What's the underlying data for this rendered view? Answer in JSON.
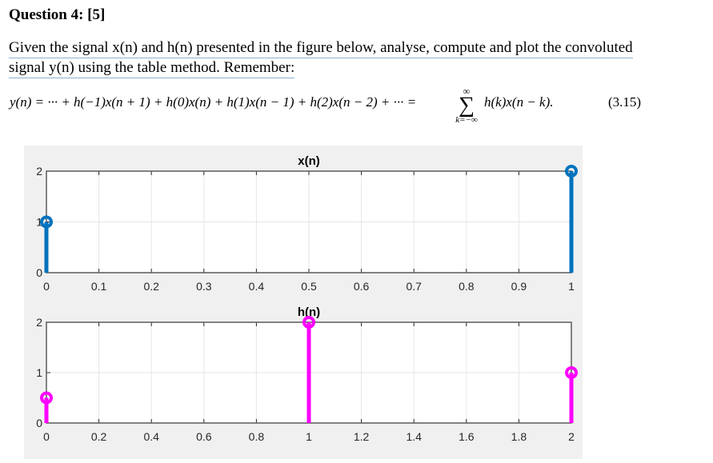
{
  "question": {
    "title": "Question 4: [5]",
    "line1": "Given the signal x(n) and h(n) presented in the figure below, analyse, compute and plot the convoluted",
    "line2": "signal y(n) using the table method. Remember:"
  },
  "equation": {
    "lhs": "y(n) = ··· + h(−1)x(n + 1) + h(0)x(n) + h(1)x(n − 1) + h(2)x(n − 2) + ··· =",
    "sum_upper": "∞",
    "sum_symbol": "∑",
    "sum_lower": "k=−∞",
    "rhs": "h(k)x(n − k).",
    "number": "(3.15)"
  },
  "colors": {
    "x_stem": "#0072BD",
    "h_stem": "#FF00FF",
    "figure_bg": "#f0f0f0",
    "axes_bg": "#ffffff",
    "grid": "#e6e6e6",
    "axis": "#262626"
  },
  "chart_data": [
    {
      "type": "stem",
      "title": "x(n)",
      "xlabel": "",
      "ylabel": "",
      "x": [
        0,
        1
      ],
      "values": [
        1,
        2
      ],
      "xlim": [
        0,
        1
      ],
      "ylim": [
        0,
        2
      ],
      "xticks": [
        "0",
        "0.1",
        "0.2",
        "0.3",
        "0.4",
        "0.5",
        "0.6",
        "0.7",
        "0.8",
        "0.9",
        "1"
      ],
      "yticks": [
        "0",
        "1",
        "2"
      ],
      "grid": true,
      "color": "#0072BD"
    },
    {
      "type": "stem",
      "title": "h(n)",
      "xlabel": "",
      "ylabel": "",
      "x": [
        0,
        1,
        2
      ],
      "values": [
        0.5,
        2,
        1
      ],
      "xlim": [
        0,
        2
      ],
      "ylim": [
        0,
        2
      ],
      "xticks": [
        "0",
        "0.2",
        "0.4",
        "0.6",
        "0.8",
        "1",
        "1.2",
        "1.4",
        "1.6",
        "1.8",
        "2"
      ],
      "yticks": [
        "0",
        "1",
        "2"
      ],
      "grid": true,
      "color": "#FF00FF"
    }
  ]
}
